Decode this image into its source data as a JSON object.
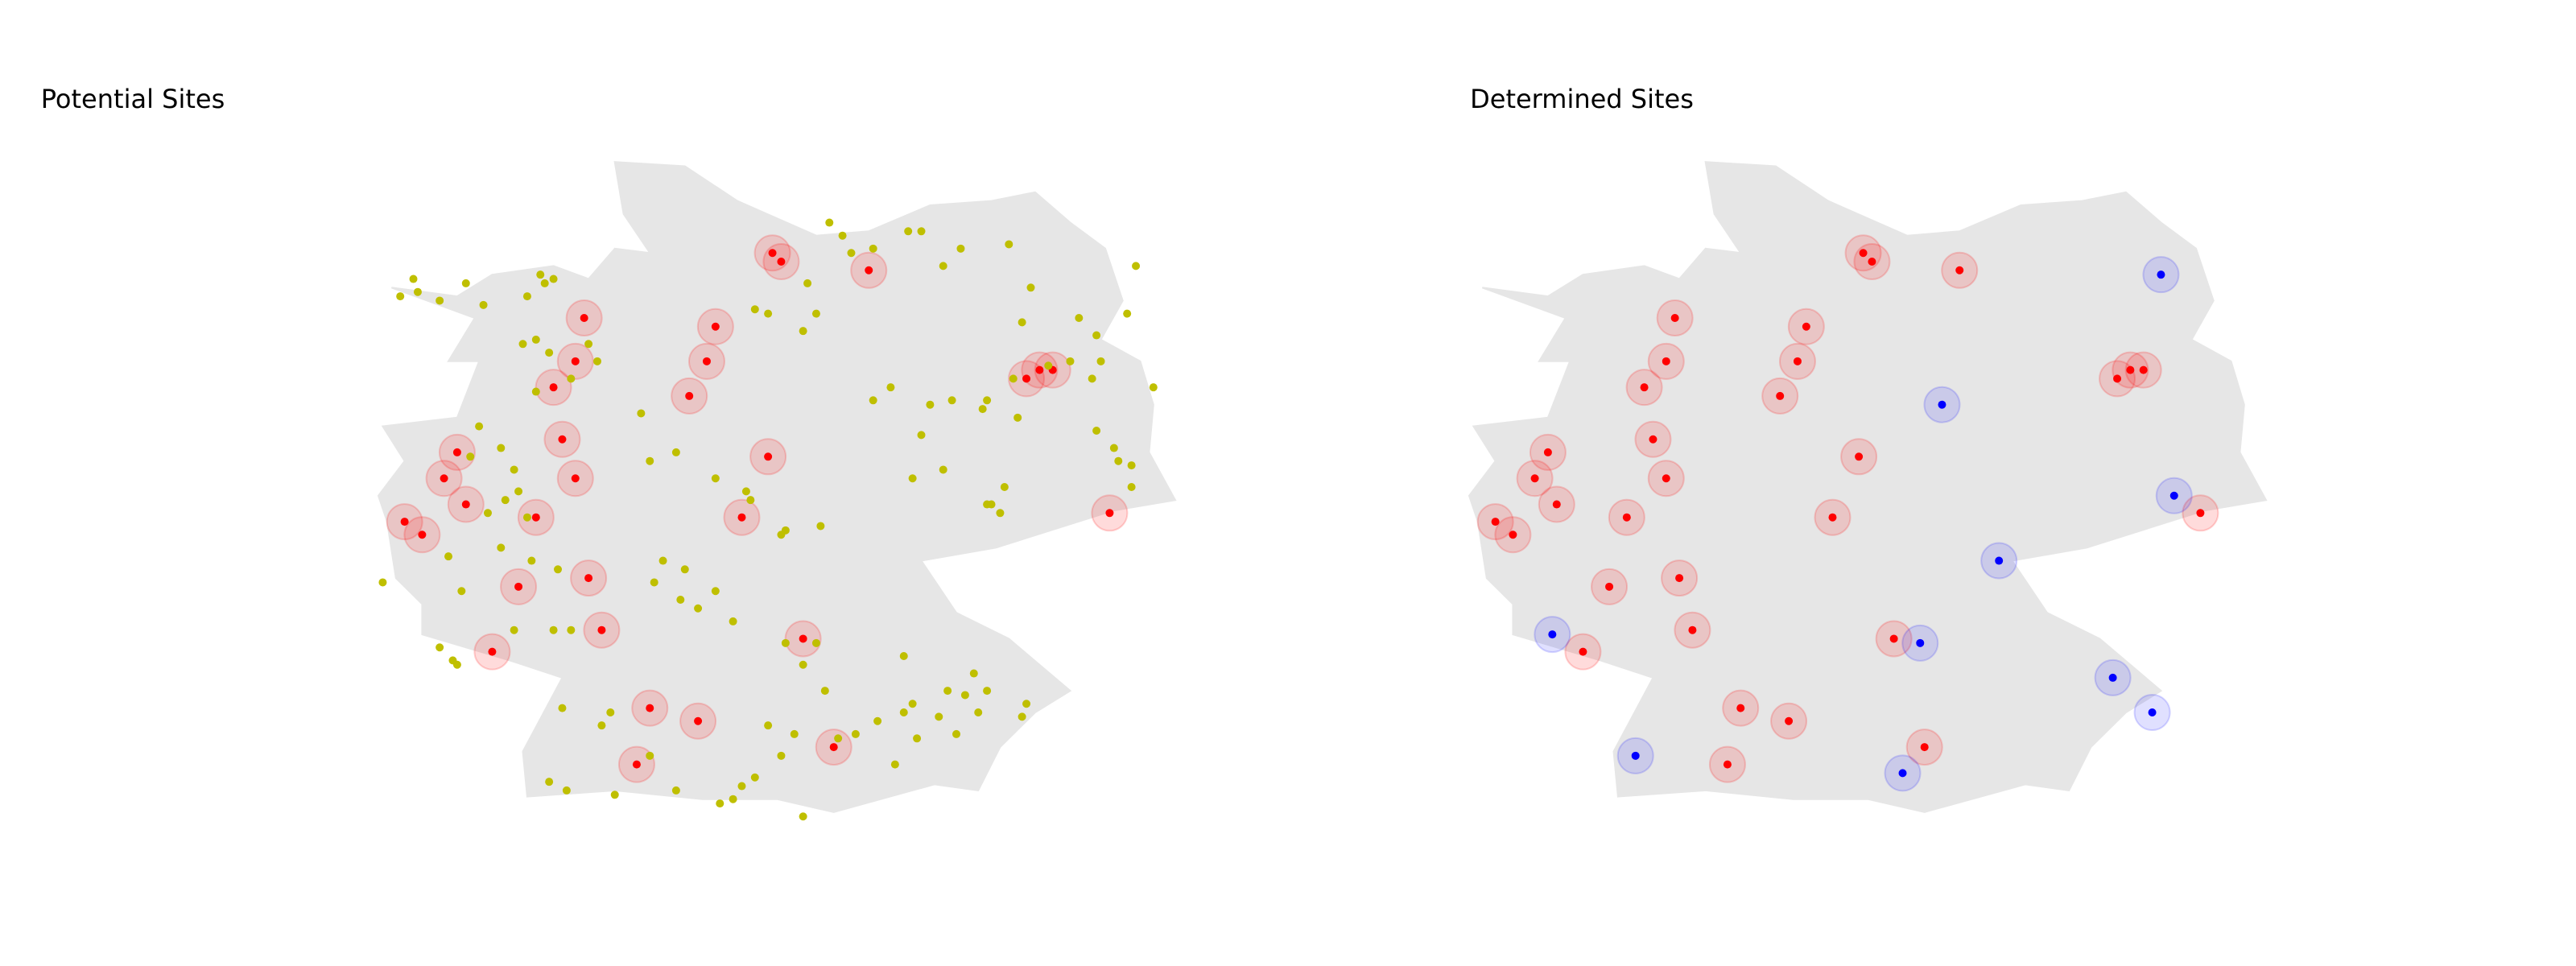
{
  "colors": {
    "land": "#e6e6e6",
    "selected_marker": "#ff0000",
    "selected_halo": "rgba(255,0,0,0.14)",
    "new_marker": "#0000ff",
    "new_halo": "rgba(0,0,255,0.12)",
    "candidate_marker": "#bfbf00"
  },
  "left_panel": {
    "title": "Potential Sites"
  },
  "right_panel": {
    "title": "Determined Sites"
  },
  "map_data": {
    "region": "Germany",
    "existing_sites": [
      [
        6.2,
        50.75
      ],
      [
        6.4,
        50.6
      ],
      [
        6.9,
        50.95
      ],
      [
        6.65,
        51.25
      ],
      [
        6.8,
        51.55
      ],
      [
        7.5,
        50.0
      ],
      [
        7.7,
        50.8
      ],
      [
        7.2,
        49.25
      ],
      [
        8.45,
        49.5
      ],
      [
        8.3,
        50.1
      ],
      [
        8.15,
        51.25
      ],
      [
        8.0,
        51.7
      ],
      [
        7.9,
        52.3
      ],
      [
        8.15,
        52.6
      ],
      [
        8.25,
        53.1
      ],
      [
        9.45,
        52.2
      ],
      [
        9.65,
        52.6
      ],
      [
        9.75,
        53.0
      ],
      [
        10.35,
        51.5
      ],
      [
        10.05,
        50.8
      ],
      [
        9.0,
        48.6
      ],
      [
        9.55,
        48.45
      ],
      [
        8.85,
        47.95
      ],
      [
        10.75,
        49.4
      ],
      [
        11.1,
        48.15
      ],
      [
        10.4,
        53.85
      ],
      [
        10.5,
        53.75
      ],
      [
        11.5,
        53.65
      ],
      [
        13.3,
        52.4
      ],
      [
        13.45,
        52.5
      ],
      [
        13.6,
        52.5
      ],
      [
        14.25,
        50.85
      ]
    ],
    "new_sites": [
      [
        13.8,
        53.6
      ],
      [
        11.3,
        52.1
      ],
      [
        13.95,
        51.05
      ],
      [
        11.95,
        50.3
      ],
      [
        11.05,
        49.35
      ],
      [
        6.85,
        49.45
      ],
      [
        13.25,
        48.95
      ],
      [
        13.7,
        48.55
      ],
      [
        7.8,
        48.05
      ],
      [
        10.85,
        47.85
      ]
    ],
    "candidate_sites": [
      [
        6.15,
        53.35
      ],
      [
        6.3,
        53.55
      ],
      [
        6.35,
        53.4
      ],
      [
        6.6,
        53.3
      ],
      [
        6.9,
        53.5
      ],
      [
        7.1,
        53.25
      ],
      [
        7.6,
        53.35
      ],
      [
        7.75,
        53.6
      ],
      [
        7.8,
        53.5
      ],
      [
        7.9,
        53.55
      ],
      [
        7.55,
        52.8
      ],
      [
        7.7,
        52.85
      ],
      [
        7.85,
        52.7
      ],
      [
        8.1,
        52.4
      ],
      [
        8.3,
        52.8
      ],
      [
        8.4,
        52.6
      ],
      [
        7.7,
        52.25
      ],
      [
        7.3,
        51.6
      ],
      [
        7.05,
        51.85
      ],
      [
        6.95,
        51.5
      ],
      [
        7.45,
        51.35
      ],
      [
        7.5,
        51.1
      ],
      [
        7.35,
        51.0
      ],
      [
        7.6,
        50.8
      ],
      [
        7.15,
        50.85
      ],
      [
        6.7,
        50.35
      ],
      [
        6.85,
        49.95
      ],
      [
        6.6,
        49.3
      ],
      [
        6.75,
        49.15
      ],
      [
        6.8,
        49.1
      ],
      [
        5.95,
        50.05
      ],
      [
        7.3,
        50.45
      ],
      [
        7.65,
        50.3
      ],
      [
        7.95,
        50.2
      ],
      [
        7.45,
        49.5
      ],
      [
        7.9,
        49.5
      ],
      [
        8.1,
        49.5
      ],
      [
        8.0,
        48.6
      ],
      [
        8.45,
        48.4
      ],
      [
        8.55,
        48.55
      ],
      [
        9.0,
        48.05
      ],
      [
        7.85,
        47.75
      ],
      [
        8.05,
        47.65
      ],
      [
        8.6,
        47.6
      ],
      [
        9.3,
        47.65
      ],
      [
        9.8,
        47.5
      ],
      [
        9.95,
        47.55
      ],
      [
        10.05,
        47.7
      ],
      [
        10.2,
        47.8
      ],
      [
        10.5,
        48.05
      ],
      [
        10.75,
        47.35
      ],
      [
        10.65,
        48.3
      ],
      [
        10.35,
        48.4
      ],
      [
        9.95,
        49.6
      ],
      [
        9.55,
        49.75
      ],
      [
        9.75,
        49.95
      ],
      [
        9.15,
        50.3
      ],
      [
        9.4,
        50.2
      ],
      [
        9.05,
        50.05
      ],
      [
        9.35,
        49.85
      ],
      [
        10.55,
        49.35
      ],
      [
        10.9,
        49.35
      ],
      [
        10.75,
        49.1
      ],
      [
        11.0,
        48.8
      ],
      [
        11.15,
        48.25
      ],
      [
        11.35,
        48.3
      ],
      [
        11.6,
        48.45
      ],
      [
        12.0,
        48.65
      ],
      [
        11.9,
        49.2
      ],
      [
        11.8,
        47.95
      ],
      [
        11.9,
        48.55
      ],
      [
        12.05,
        48.25
      ],
      [
        12.3,
        48.5
      ],
      [
        12.5,
        48.3
      ],
      [
        12.4,
        48.8
      ],
      [
        12.6,
        48.75
      ],
      [
        12.7,
        49.0
      ],
      [
        12.75,
        48.55
      ],
      [
        12.85,
        48.8
      ],
      [
        13.25,
        48.5
      ],
      [
        13.3,
        48.65
      ],
      [
        8.9,
        52.0
      ],
      [
        9.0,
        51.45
      ],
      [
        9.3,
        51.55
      ],
      [
        9.75,
        51.25
      ],
      [
        10.15,
        51.0
      ],
      [
        10.55,
        50.65
      ],
      [
        10.95,
        50.7
      ],
      [
        11.55,
        52.15
      ],
      [
        11.75,
        52.3
      ],
      [
        12.2,
        52.1
      ],
      [
        12.45,
        52.15
      ],
      [
        12.8,
        52.05
      ],
      [
        12.85,
        52.15
      ],
      [
        13.15,
        52.4
      ],
      [
        12.1,
        51.75
      ],
      [
        12.0,
        51.25
      ],
      [
        12.35,
        51.35
      ],
      [
        12.85,
        50.95
      ],
      [
        13.0,
        50.85
      ],
      [
        13.05,
        51.15
      ],
      [
        12.9,
        50.95
      ],
      [
        14.1,
        51.8
      ],
      [
        14.3,
        51.6
      ],
      [
        14.05,
        52.4
      ],
      [
        14.15,
        52.6
      ],
      [
        14.1,
        52.9
      ],
      [
        14.5,
        51.4
      ],
      [
        14.5,
        51.15
      ],
      [
        14.35,
        51.45
      ],
      [
        14.75,
        52.3
      ],
      [
        13.25,
        53.05
      ],
      [
        13.55,
        52.55
      ],
      [
        14.45,
        53.15
      ],
      [
        14.55,
        53.7
      ],
      [
        10.8,
        53.5
      ],
      [
        11.05,
        54.2
      ],
      [
        11.2,
        54.05
      ],
      [
        11.3,
        53.85
      ],
      [
        11.55,
        53.9
      ],
      [
        11.95,
        54.1
      ],
      [
        12.1,
        54.1
      ],
      [
        10.2,
        53.2
      ],
      [
        10.35,
        53.15
      ],
      [
        10.9,
        53.15
      ],
      [
        10.75,
        52.95
      ],
      [
        10.1,
        51.1
      ],
      [
        10.5,
        50.6
      ],
      [
        12.55,
        53.9
      ],
      [
        13.1,
        53.95
      ],
      [
        13.35,
        53.45
      ],
      [
        12.35,
        53.7
      ],
      [
        13.9,
        53.1
      ],
      [
        13.8,
        52.6
      ],
      [
        13.2,
        51.95
      ]
    ]
  }
}
